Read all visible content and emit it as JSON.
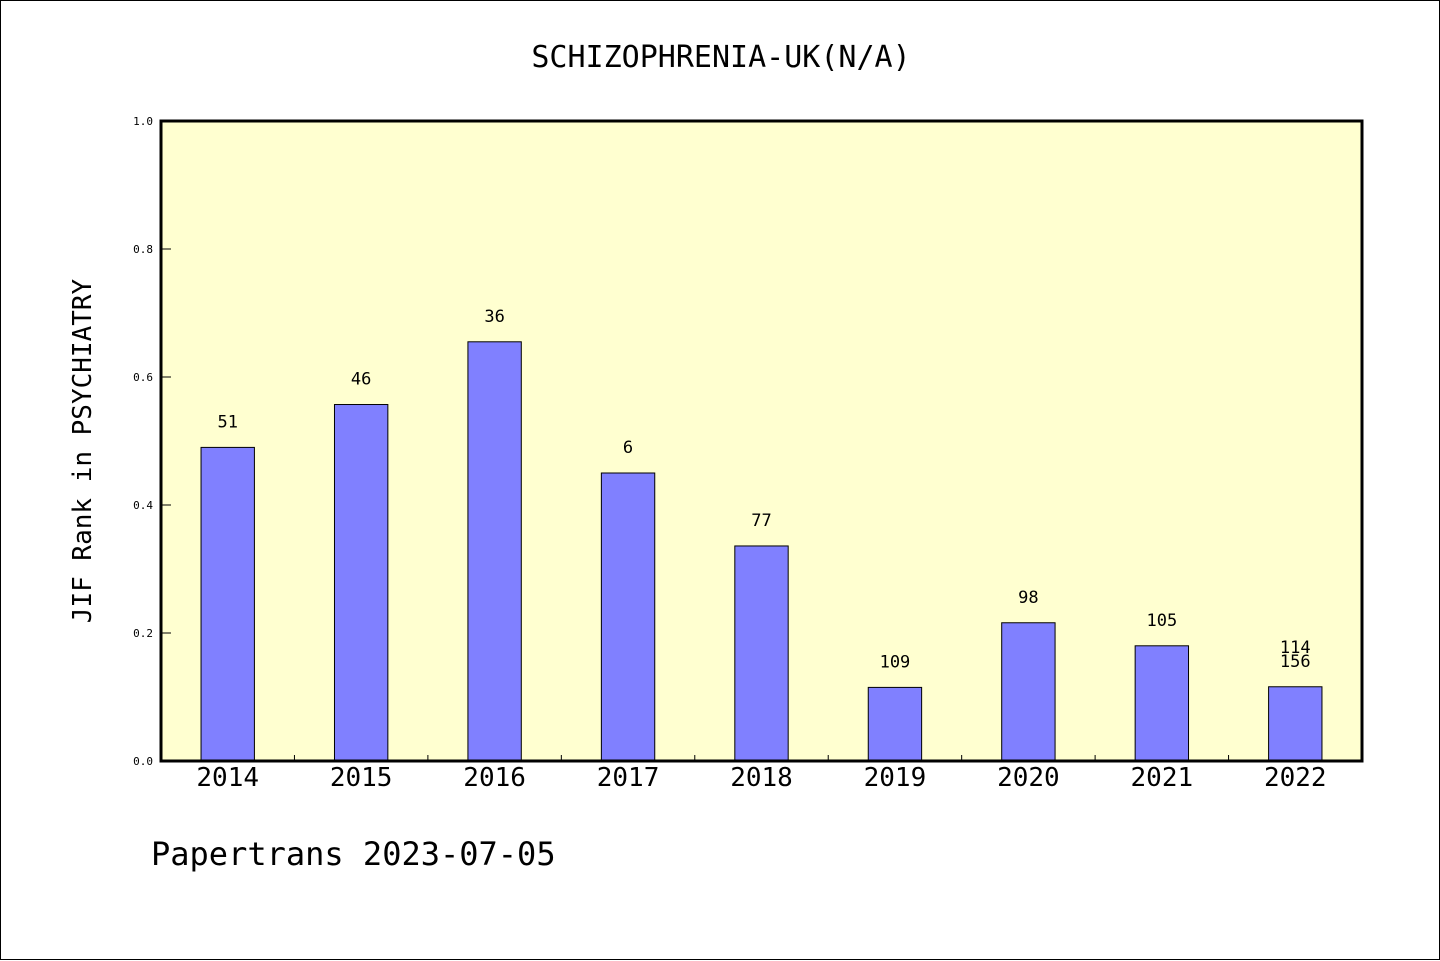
{
  "chart_data": {
    "type": "bar",
    "title": "SCHIZOPHRENIA-UK(N/A)",
    "xlabel": "",
    "ylabel": "JIF Rank in PSYCHIATRY",
    "ylim": [
      0,
      1.0
    ],
    "yticks": [
      "0.0",
      "0.2",
      "0.4",
      "0.6",
      "0.8",
      "1.0"
    ],
    "ytick_values": [
      0,
      0.2,
      0.4,
      0.6,
      0.8,
      1.0
    ],
    "categories": [
      "2014",
      "2015",
      "2016",
      "2017",
      "2018",
      "2019",
      "2020",
      "2021",
      "2022"
    ],
    "values": [
      0.49,
      0.557,
      0.655,
      0.45,
      0.336,
      0.115,
      0.216,
      0.18,
      0.116
    ],
    "labels": [
      [
        "51"
      ],
      [
        "46"
      ],
      [
        "36"
      ],
      [
        "6"
      ],
      [
        "77"
      ],
      [
        "109"
      ],
      [
        "98"
      ],
      [
        "105"
      ],
      [
        "114",
        "156"
      ]
    ],
    "grid": false,
    "colors": {
      "bar": "#8080ff",
      "plot_bg": "#ffffd0",
      "edge": "#000000"
    }
  },
  "footer": "Papertrans 2023-07-05"
}
